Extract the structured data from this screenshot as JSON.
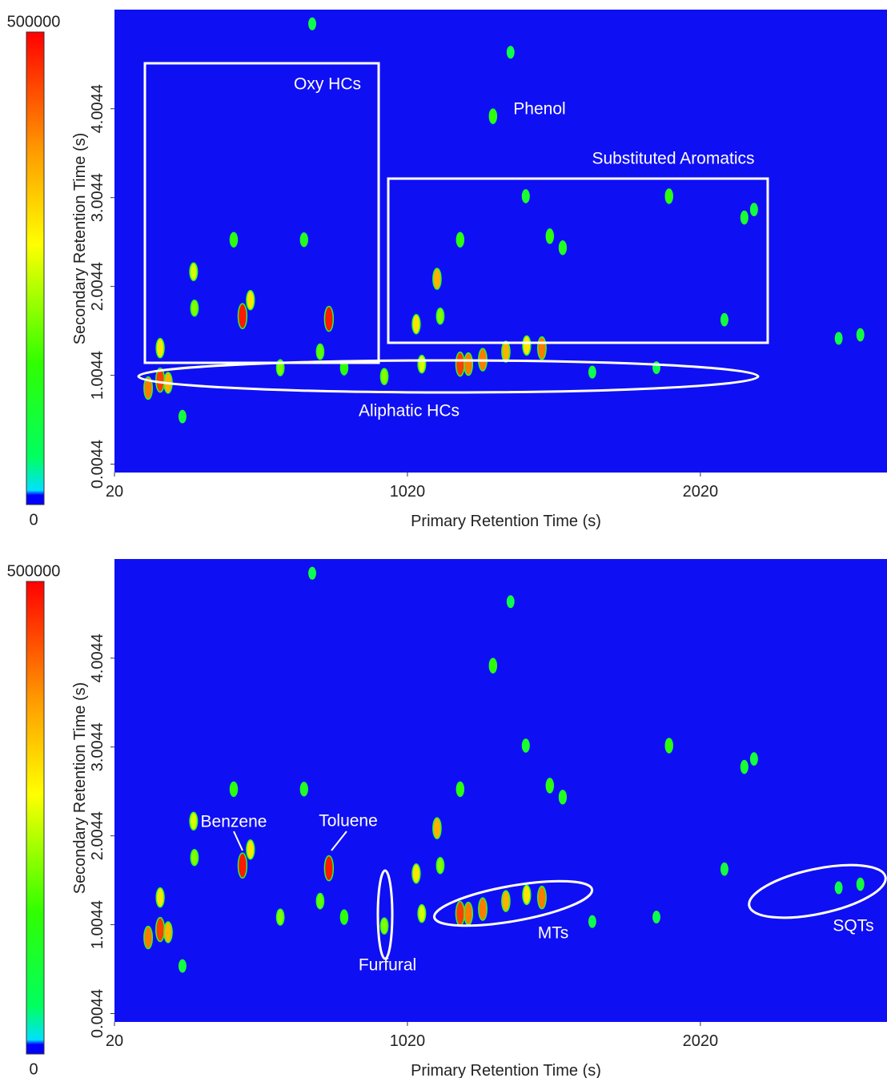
{
  "chart_data": [
    {
      "type": "heatmap",
      "x_label": "Primary Retention Time (s)",
      "y_label": "Secondary Retention Time (s)",
      "xlim": [
        20,
        2657
      ],
      "ylim": [
        -0.09,
        5.12
      ],
      "xticks": [
        20,
        1020,
        2020
      ],
      "yticks": [
        0.0044,
        1.0044,
        2.0044,
        3.0044,
        4.0044
      ],
      "zlim": [
        0,
        500000
      ],
      "zticks": [
        0,
        500000
      ],
      "x": [
        135,
        176,
        203,
        176,
        290,
        293,
        457,
        484,
        427,
        752,
        667,
        1050,
        1121,
        1200,
        1312,
        1424,
        1506,
        1550,
        1913,
        2170,
        2203,
        2566,
        2492,
        1200,
        1228,
        1277,
        1356,
        1427,
        1479,
        1069,
        1132,
        252,
        695,
        1372,
        2102,
        1870,
        1651,
        586,
        722,
        804,
        941
      ],
      "y": [
        0.86,
        0.95,
        0.92,
        1.31,
        2.17,
        1.76,
        1.67,
        1.85,
        2.53,
        1.64,
        2.53,
        1.58,
        2.09,
        2.53,
        3.92,
        3.02,
        2.57,
        2.44,
        3.02,
        2.78,
        2.87,
        1.46,
        1.42,
        1.13,
        1.13,
        1.18,
        1.27,
        1.34,
        1.31,
        1.13,
        1.67,
        0.54,
        4.96,
        4.64,
        1.63,
        1.09,
        1.04,
        1.09,
        1.27,
        1.09,
        0.99
      ],
      "values": [
        400000,
        450000,
        350000,
        300000,
        250000,
        200000,
        480000,
        300000,
        150000,
        480000,
        120000,
        300000,
        350000,
        150000,
        150000,
        100000,
        150000,
        120000,
        150000,
        100000,
        80000,
        80000,
        60000,
        450000,
        400000,
        400000,
        350000,
        300000,
        400000,
        250000,
        200000,
        80000,
        60000,
        60000,
        80000,
        60000,
        60000,
        200000,
        180000,
        150000,
        200000
      ],
      "annotations": [
        "Oxy HCs",
        "Phenol",
        "Substituted Aromatics",
        "Aliphatic HCs"
      ]
    },
    {
      "type": "heatmap",
      "x_label": "Primary Retention Time (s)",
      "y_label": "Secondary Retention Time (s)",
      "xlim": [
        20,
        2657
      ],
      "ylim": [
        -0.09,
        5.12
      ],
      "xticks": [
        20,
        1020,
        2020
      ],
      "yticks": [
        0.0044,
        1.0044,
        2.0044,
        3.0044,
        4.0044
      ],
      "zlim": [
        0,
        500000
      ],
      "zticks": [
        0,
        500000
      ],
      "x": [
        135,
        176,
        203,
        176,
        290,
        293,
        457,
        484,
        427,
        752,
        667,
        1050,
        1121,
        1200,
        1312,
        1424,
        1506,
        1550,
        1913,
        2170,
        2203,
        2566,
        2492,
        1200,
        1228,
        1277,
        1356,
        1427,
        1479,
        1069,
        1132,
        252,
        695,
        1372,
        2102,
        1870,
        1651,
        586,
        722,
        804,
        941
      ],
      "y": [
        0.86,
        0.95,
        0.92,
        1.31,
        2.17,
        1.76,
        1.67,
        1.85,
        2.53,
        1.64,
        2.53,
        1.58,
        2.09,
        2.53,
        3.92,
        3.02,
        2.57,
        2.44,
        3.02,
        2.78,
        2.87,
        1.46,
        1.42,
        1.13,
        1.13,
        1.18,
        1.27,
        1.34,
        1.31,
        1.13,
        1.67,
        0.54,
        4.96,
        4.64,
        1.63,
        1.09,
        1.04,
        1.09,
        1.27,
        1.09,
        0.99
      ],
      "values": [
        400000,
        450000,
        350000,
        300000,
        250000,
        200000,
        480000,
        300000,
        150000,
        480000,
        120000,
        300000,
        350000,
        150000,
        150000,
        100000,
        150000,
        120000,
        150000,
        100000,
        80000,
        80000,
        60000,
        450000,
        400000,
        400000,
        350000,
        300000,
        400000,
        250000,
        200000,
        80000,
        60000,
        60000,
        80000,
        60000,
        60000,
        200000,
        180000,
        150000,
        200000
      ],
      "annotations": [
        "Benzene",
        "Toluene",
        "Furfural",
        "MTs",
        "SQTs"
      ]
    }
  ]
}
